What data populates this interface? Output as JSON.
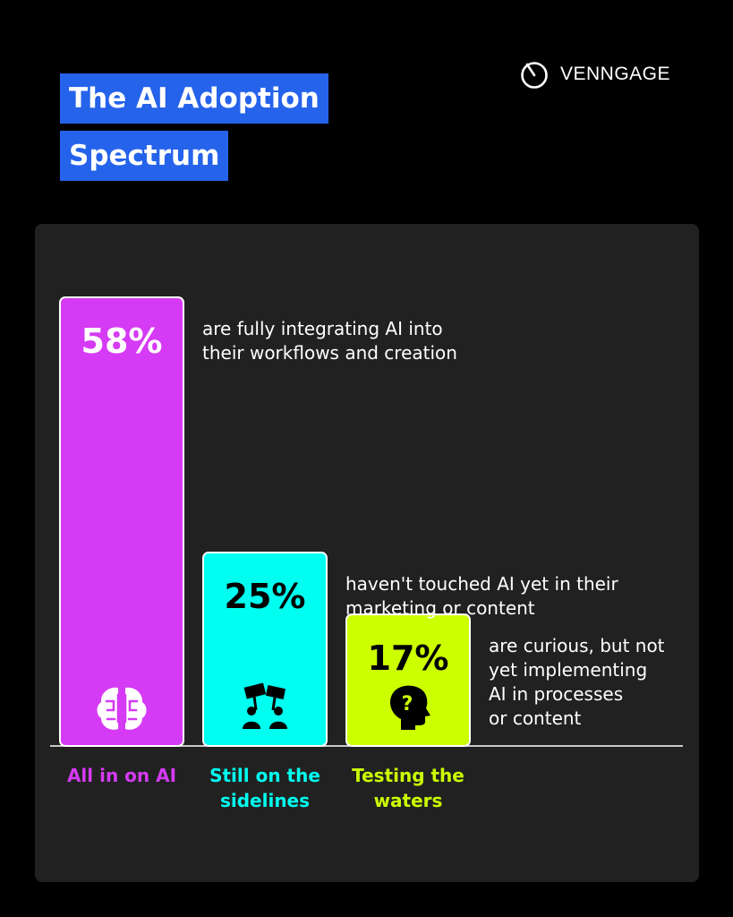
{
  "title_lines": [
    "The AI Adoption",
    "Spectrum"
  ],
  "brand": {
    "name": "VENNGAGE",
    "icon": "clock-logo-icon"
  },
  "colors": {
    "background": "#000000",
    "panel": "#212121",
    "title_bg": "#2563eb"
  },
  "chart_data": {
    "type": "bar",
    "categories": [
      {
        "label": [
          "All in on AI"
        ],
        "color": "#d53af4",
        "text_color": "#ffffff",
        "icon": "brain-icon",
        "description": [
          "are fully integrating AI into",
          "their workflows and creation"
        ]
      },
      {
        "label": [
          "Still on the",
          "sidelines"
        ],
        "color": "#00fff0",
        "text_color": "#000000",
        "icon": "protest-signs-icon",
        "description": [
          "haven't touched AI yet in their",
          "marketing or content"
        ]
      },
      {
        "label": [
          "Testing the",
          "waters"
        ],
        "color": "#ccff00",
        "text_color": "#000000",
        "icon": "head-question-icon",
        "description": [
          "are curious, but not",
          "yet implementing",
          "AI in processes",
          "or content"
        ]
      }
    ],
    "values": [
      58,
      25,
      17
    ],
    "value_labels": [
      "58%",
      "25%",
      "17%"
    ]
  }
}
